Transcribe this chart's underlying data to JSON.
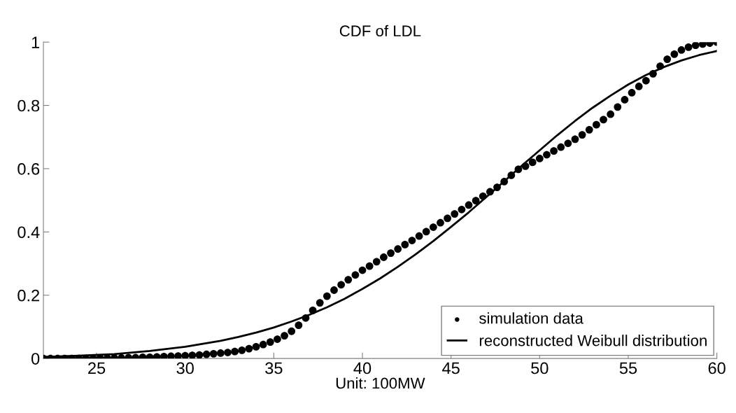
{
  "chart_data": {
    "type": "scatter",
    "title": "CDF of LDL",
    "xlabel": "Unit: 100MW",
    "xlim": [
      22,
      60
    ],
    "ylim": [
      0,
      1
    ],
    "xticks": [
      25,
      30,
      35,
      40,
      45,
      50,
      55,
      60
    ],
    "yticks": [
      0,
      0.2,
      0.4,
      0.6,
      0.8,
      1
    ],
    "grid": false,
    "legend": "bottom right",
    "series": [
      {
        "name": "simulation data",
        "marker": "circle",
        "color": "#000000",
        "x": [
          22.0,
          22.4,
          22.8,
          23.2,
          23.6,
          24.0,
          24.4,
          24.8,
          25.2,
          25.6,
          26.0,
          26.4,
          26.8,
          27.2,
          27.6,
          28.0,
          28.4,
          28.8,
          29.2,
          29.6,
          30.0,
          30.4,
          30.8,
          31.2,
          31.6,
          32.0,
          32.4,
          32.8,
          33.2,
          33.6,
          34.0,
          34.4,
          34.8,
          35.2,
          35.6,
          36.0,
          36.4,
          36.8,
          37.2,
          37.6,
          38.0,
          38.4,
          38.8,
          39.2,
          39.6,
          40.0,
          40.4,
          40.8,
          41.2,
          41.6,
          42.0,
          42.4,
          42.8,
          43.2,
          43.6,
          44.0,
          44.4,
          44.8,
          45.2,
          45.6,
          46.0,
          46.4,
          46.8,
          47.2,
          47.6,
          48.0,
          48.4,
          48.8,
          49.2,
          49.6,
          50.0,
          50.4,
          50.8,
          51.2,
          51.6,
          52.0,
          52.4,
          52.8,
          53.2,
          53.6,
          54.0,
          54.4,
          54.8,
          55.2,
          55.6,
          56.0,
          56.4,
          56.8,
          57.2,
          57.6,
          58.0,
          58.4,
          58.8,
          59.2,
          59.6,
          60.0
        ],
        "values": [
          0,
          0,
          0,
          0,
          0,
          0,
          0,
          0,
          0.001,
          0.001,
          0.002,
          0.002,
          0.003,
          0.003,
          0.004,
          0.004,
          0.005,
          0.006,
          0.007,
          0.008,
          0.009,
          0.01,
          0.011,
          0.013,
          0.015,
          0.017,
          0.019,
          0.022,
          0.026,
          0.031,
          0.037,
          0.044,
          0.052,
          0.061,
          0.072,
          0.086,
          0.105,
          0.128,
          0.152,
          0.176,
          0.197,
          0.216,
          0.233,
          0.249,
          0.264,
          0.279,
          0.292,
          0.306,
          0.32,
          0.333,
          0.346,
          0.36,
          0.373,
          0.387,
          0.401,
          0.415,
          0.429,
          0.443,
          0.457,
          0.471,
          0.485,
          0.499,
          0.513,
          0.527,
          0.541,
          0.559,
          0.579,
          0.598,
          0.608,
          0.62,
          0.632,
          0.644,
          0.656,
          0.668,
          0.68,
          0.693,
          0.707,
          0.723,
          0.739,
          0.755,
          0.772,
          0.795,
          0.818,
          0.84,
          0.86,
          0.878,
          0.9,
          0.924,
          0.946,
          0.962,
          0.975,
          0.984,
          0.99,
          0.994,
          0.997,
          1.0
        ]
      },
      {
        "name": "reconstructed Weibull distribution",
        "type": "line",
        "line_style": "solid",
        "color": "#000000",
        "x": [
          22,
          24,
          26,
          28,
          30,
          32,
          33,
          34,
          35,
          36,
          37,
          38,
          39,
          40,
          41,
          42,
          43,
          44,
          45,
          46,
          47,
          48,
          49,
          50,
          51,
          52,
          53,
          54,
          55,
          56,
          57,
          58,
          59,
          60
        ],
        "values": [
          0.005,
          0.009,
          0.014,
          0.024,
          0.037,
          0.056,
          0.068,
          0.082,
          0.098,
          0.117,
          0.138,
          0.162,
          0.189,
          0.22,
          0.253,
          0.29,
          0.329,
          0.371,
          0.416,
          0.462,
          0.511,
          0.56,
          0.61,
          0.658,
          0.706,
          0.751,
          0.793,
          0.831,
          0.866,
          0.896,
          0.921,
          0.942,
          0.959,
          0.972
        ]
      }
    ]
  }
}
